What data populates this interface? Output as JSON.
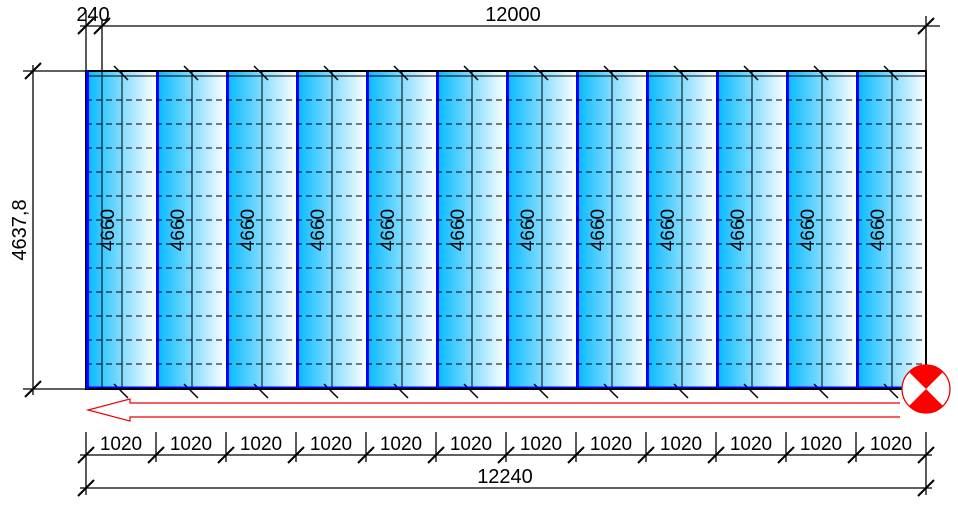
{
  "dimensions": {
    "top_offset": "240",
    "top_total": "12000",
    "left_height": "4637,8",
    "panel_length": "4660",
    "panel_width": "1020",
    "bottom_total": "12240"
  },
  "panel_count": 12,
  "colors": {
    "panel_dark": "#00b8ff",
    "panel_light": "#ffffff",
    "panel_edge": "#0000ff",
    "marker": "#ff0000"
  }
}
